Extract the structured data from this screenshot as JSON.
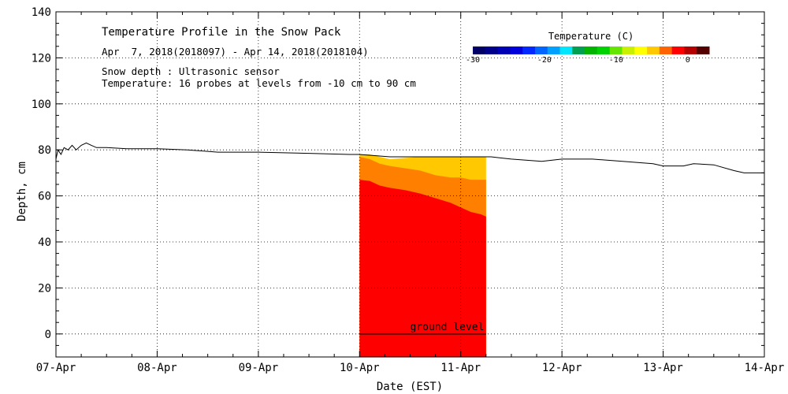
{
  "chart_data": {
    "type": "area",
    "title": "Temperature Profile in the Snow Pack",
    "subtitle": "Apr  7, 2018(2018097) - Apr 14, 2018(2018104)",
    "info_lines": [
      "Snow depth : Ultrasonic sensor",
      "Temperature: 16 probes at levels from -10 cm to 90 cm"
    ],
    "xlabel": "Date (EST)",
    "ylabel": "Depth, cm",
    "x_ticks": [
      "07-Apr",
      "08-Apr",
      "09-Apr",
      "10-Apr",
      "11-Apr",
      "12-Apr",
      "13-Apr",
      "14-Apr"
    ],
    "xlim_days": [
      0,
      7
    ],
    "ylim": [
      -10,
      140
    ],
    "y_ticks": [
      0,
      20,
      40,
      60,
      80,
      100,
      120,
      140
    ],
    "grid": true,
    "ground_level": {
      "label": "ground level",
      "y": 0
    },
    "snow_depth": {
      "name": "Snow depth",
      "color": "#000000",
      "points": [
        [
          0.0,
          76
        ],
        [
          0.02,
          80
        ],
        [
          0.05,
          78
        ],
        [
          0.08,
          81
        ],
        [
          0.12,
          80
        ],
        [
          0.16,
          82
        ],
        [
          0.2,
          80
        ],
        [
          0.25,
          82
        ],
        [
          0.3,
          83
        ],
        [
          0.35,
          82
        ],
        [
          0.4,
          81
        ],
        [
          0.5,
          81
        ],
        [
          0.7,
          80.5
        ],
        [
          1.0,
          80.5
        ],
        [
          1.3,
          80
        ],
        [
          1.6,
          79
        ],
        [
          2.0,
          79
        ],
        [
          2.5,
          78.5
        ],
        [
          2.9,
          78
        ],
        [
          3.0,
          78
        ],
        [
          3.3,
          77
        ],
        [
          3.5,
          77
        ],
        [
          3.8,
          77
        ],
        [
          4.0,
          77
        ],
        [
          4.3,
          77
        ],
        [
          4.5,
          76
        ],
        [
          4.8,
          75
        ],
        [
          5.0,
          76
        ],
        [
          5.3,
          76
        ],
        [
          5.6,
          75
        ],
        [
          5.9,
          74
        ],
        [
          6.0,
          73
        ],
        [
          6.2,
          73
        ],
        [
          6.3,
          74
        ],
        [
          6.5,
          73.5
        ],
        [
          6.7,
          71
        ],
        [
          6.8,
          70
        ],
        [
          7.0,
          70
        ]
      ]
    },
    "temperature_colorbar": {
      "title": "Temperature (C)",
      "min": -30,
      "max": 3,
      "tick_labels": [
        -30,
        -20,
        -10,
        0
      ],
      "colors": [
        "#000066",
        "#00008b",
        "#0000b4",
        "#0000dd",
        "#0028ff",
        "#0064ff",
        "#00a0ff",
        "#00e6ff",
        "#00a050",
        "#00b400",
        "#00d200",
        "#64e600",
        "#c8f000",
        "#ffff00",
        "#ffc800",
        "#ff6400",
        "#ff0000",
        "#b40000",
        "#550000"
      ]
    },
    "temperature_profile": {
      "x_start_day": 3.0,
      "x_end_day": 4.25,
      "bottom_y": -10,
      "bands": [
        {
          "color": "#ff0000",
          "top": [
            [
              3.0,
              67
            ],
            [
              3.1,
              66.5
            ],
            [
              3.2,
              64.5
            ],
            [
              3.3,
              63.5
            ],
            [
              3.45,
              62.5
            ],
            [
              3.6,
              61
            ],
            [
              3.75,
              59
            ],
            [
              3.9,
              57
            ],
            [
              4.0,
              55
            ],
            [
              4.1,
              53
            ],
            [
              4.2,
              52
            ],
            [
              4.25,
              51
            ]
          ]
        },
        {
          "color": "#ff7f00",
          "top": [
            [
              3.0,
              77
            ],
            [
              3.1,
              76
            ],
            [
              3.2,
              74
            ],
            [
              3.3,
              73
            ],
            [
              3.45,
              72
            ],
            [
              3.6,
              71
            ],
            [
              3.75,
              69
            ],
            [
              3.9,
              68
            ],
            [
              4.0,
              68
            ],
            [
              4.1,
              67
            ],
            [
              4.25,
              67
            ]
          ]
        },
        {
          "color": "#ffc800",
          "top": [
            [
              3.0,
              78
            ],
            [
              3.1,
              78
            ],
            [
              3.2,
              77
            ],
            [
              3.3,
              76
            ],
            [
              3.45,
              76.5
            ],
            [
              3.6,
              77
            ],
            [
              3.75,
              77
            ],
            [
              3.9,
              77
            ],
            [
              4.0,
              77
            ],
            [
              4.1,
              77
            ],
            [
              4.25,
              77
            ]
          ]
        }
      ]
    }
  }
}
